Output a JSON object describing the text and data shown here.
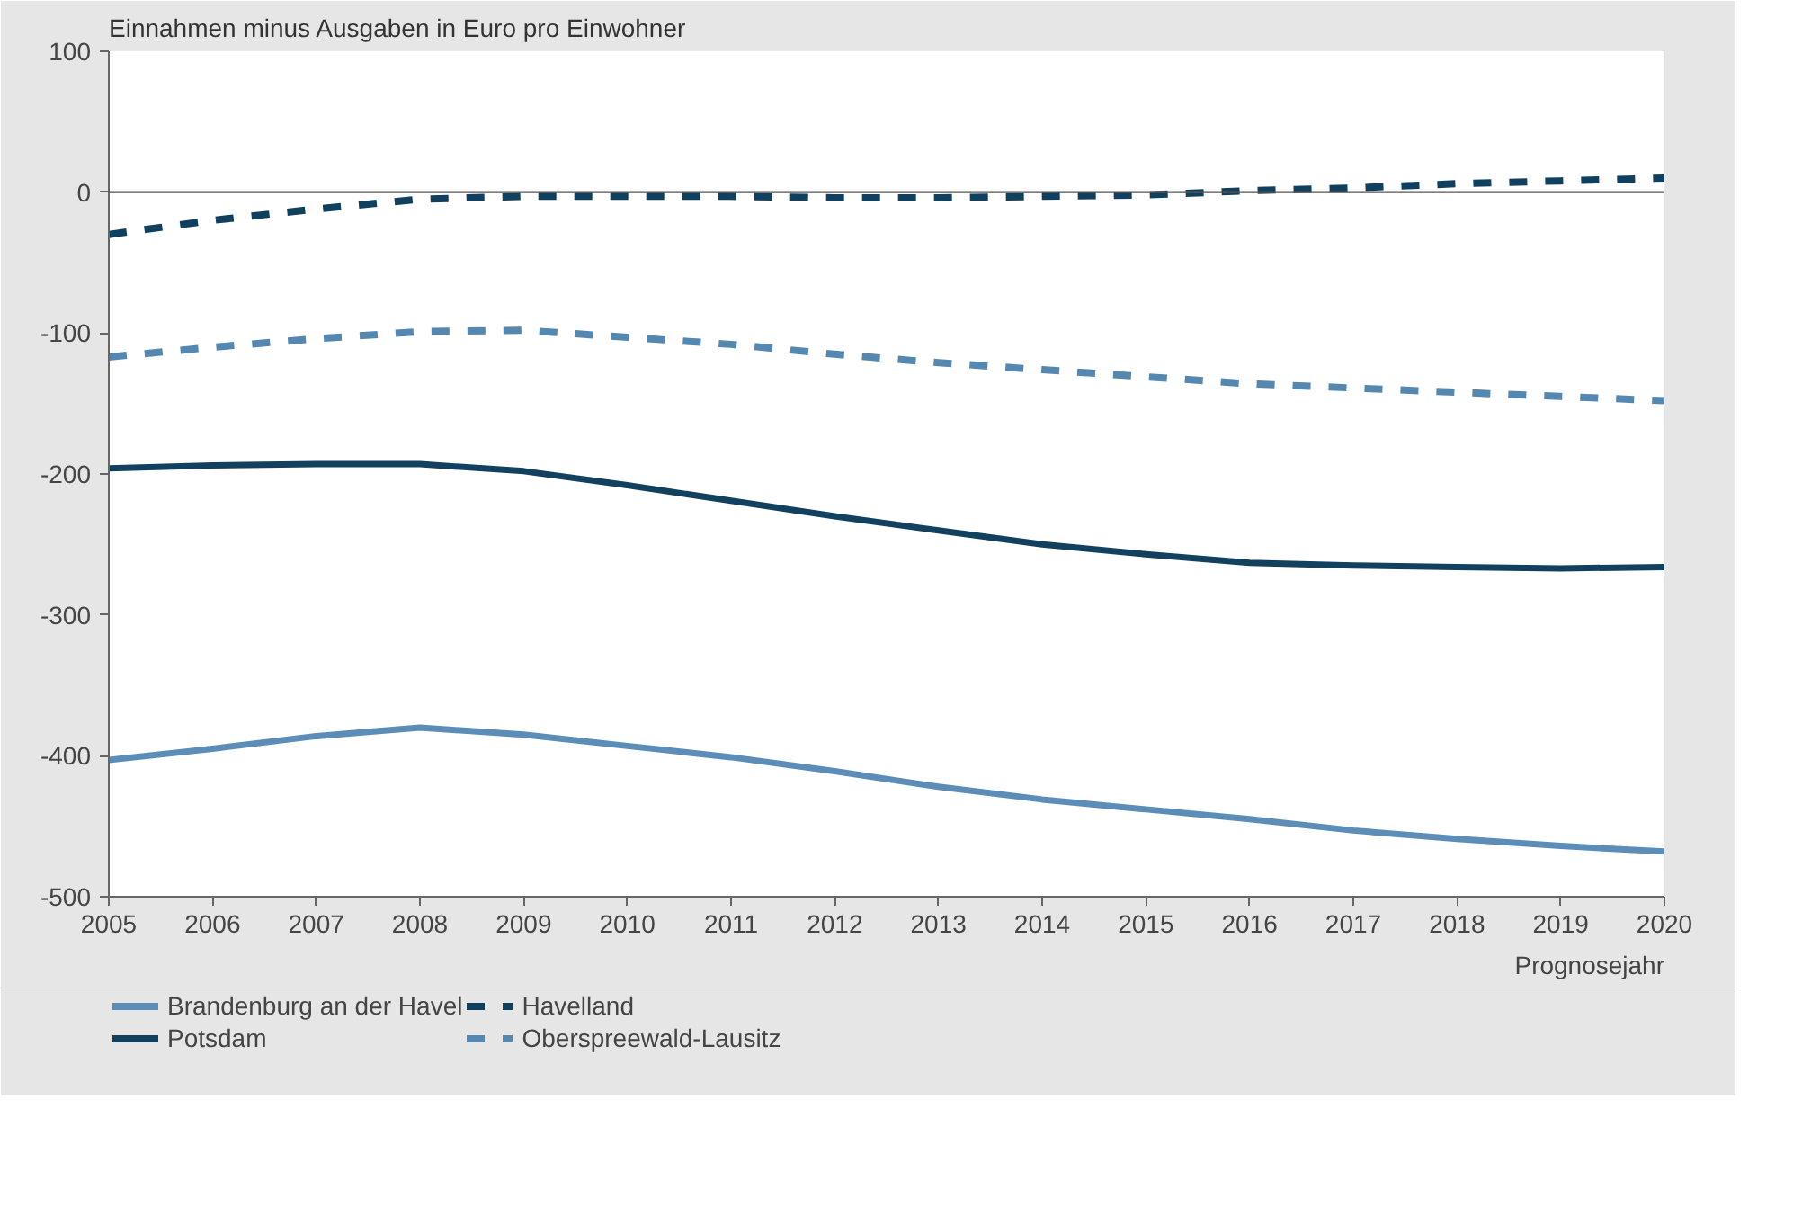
{
  "chart_data": {
    "type": "line",
    "title": "Einnahmen minus Ausgaben in Euro pro Einwohner",
    "xlabel": "Prognosejahr",
    "x": [
      2005,
      2006,
      2007,
      2008,
      2009,
      2010,
      2011,
      2012,
      2013,
      2014,
      2015,
      2016,
      2017,
      2018,
      2019,
      2020
    ],
    "xlim": [
      2005,
      2020
    ],
    "xticks": [
      2005,
      2006,
      2007,
      2008,
      2009,
      2010,
      2011,
      2012,
      2013,
      2014,
      2015,
      2016,
      2017,
      2018,
      2019,
      2020
    ],
    "ylim": [
      -500,
      100
    ],
    "yticks": [
      -500,
      -400,
      -300,
      -200,
      -100,
      0,
      100
    ],
    "grid": false,
    "legend": "bottom",
    "marker": "none",
    "ref_lines": [
      {
        "axis": "y",
        "value": 0,
        "color": "#555555"
      }
    ],
    "series": [
      {
        "name": "Brandenburg an der Havel",
        "color": "#5b8db8",
        "line_style": "solid",
        "values": [
          -403,
          -395,
          -386,
          -380,
          -385,
          -393,
          -401,
          -411,
          -422,
          -431,
          -438,
          -445,
          -453,
          -459,
          -464,
          -468
        ]
      },
      {
        "name": "Potsdam",
        "color": "#12405f",
        "line_style": "solid",
        "values": [
          -196,
          -194,
          -193,
          -193,
          -198,
          -208,
          -219,
          -230,
          -240,
          -250,
          -257,
          -263,
          -265,
          -266,
          -267,
          -266
        ]
      },
      {
        "name": "Havelland",
        "color": "#10405f",
        "line_style": "dashed",
        "values": [
          -30,
          -20,
          -12,
          -5,
          -3,
          -3,
          -3,
          -4,
          -4,
          -3,
          -2,
          1,
          3,
          6,
          8,
          10
        ]
      },
      {
        "name": "Oberspreewald-Lausitz",
        "color": "#5588b0",
        "line_style": "dashed",
        "values": [
          -117,
          -110,
          -104,
          -99,
          -98,
          -103,
          -108,
          -115,
          -121,
          -126,
          -131,
          -136,
          -139,
          -142,
          -145,
          -148
        ]
      }
    ]
  }
}
